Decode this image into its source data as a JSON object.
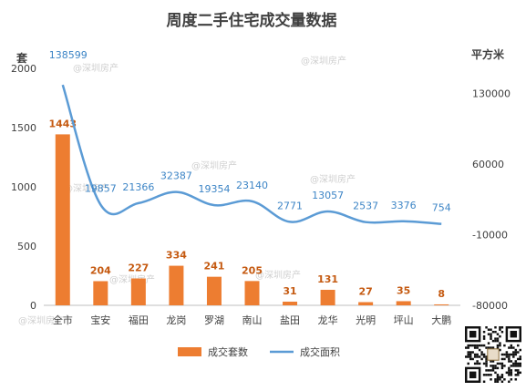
{
  "chart_data": {
    "type": "bar+line",
    "title": "周度二手住宅成交量数据",
    "categories": [
      "全市",
      "宝安",
      "福田",
      "龙岗",
      "罗湖",
      "南山",
      "盐田",
      "龙华",
      "光明",
      "坪山",
      "大鹏"
    ],
    "left_axis": {
      "unit": "套",
      "ticks": [
        "0",
        "500",
        "1000",
        "1500",
        "2000"
      ],
      "range": [
        0,
        2000
      ]
    },
    "right_axis": {
      "unit": "平方米",
      "ticks": [
        "-80000",
        "-10000",
        "60000",
        "130000"
      ],
      "range": [
        -80000,
        155000
      ]
    },
    "series": [
      {
        "name": "成交套数",
        "type": "bar",
        "axis": "left",
        "color": "#ed7d31",
        "values": [
          1443,
          204,
          227,
          334,
          241,
          205,
          31,
          131,
          27,
          35,
          8
        ],
        "labels": [
          "1443",
          "204",
          "227",
          "334",
          "241",
          "205",
          "31",
          "131",
          "27",
          "35",
          "8"
        ]
      },
      {
        "name": "成交面积",
        "type": "line",
        "axis": "right",
        "color": "#5b9bd5",
        "values": [
          138599,
          19857,
          21366,
          32387,
          19354,
          23140,
          2771,
          13057,
          2537,
          3376,
          754
        ],
        "labels": [
          "138599",
          "19857",
          "21366",
          "32387",
          "19354",
          "23140",
          "2771",
          "13057",
          "2537",
          "3376",
          "754"
        ]
      }
    ],
    "legend_position": "bottom",
    "grid": false,
    "watermark": "@深圳房产"
  }
}
